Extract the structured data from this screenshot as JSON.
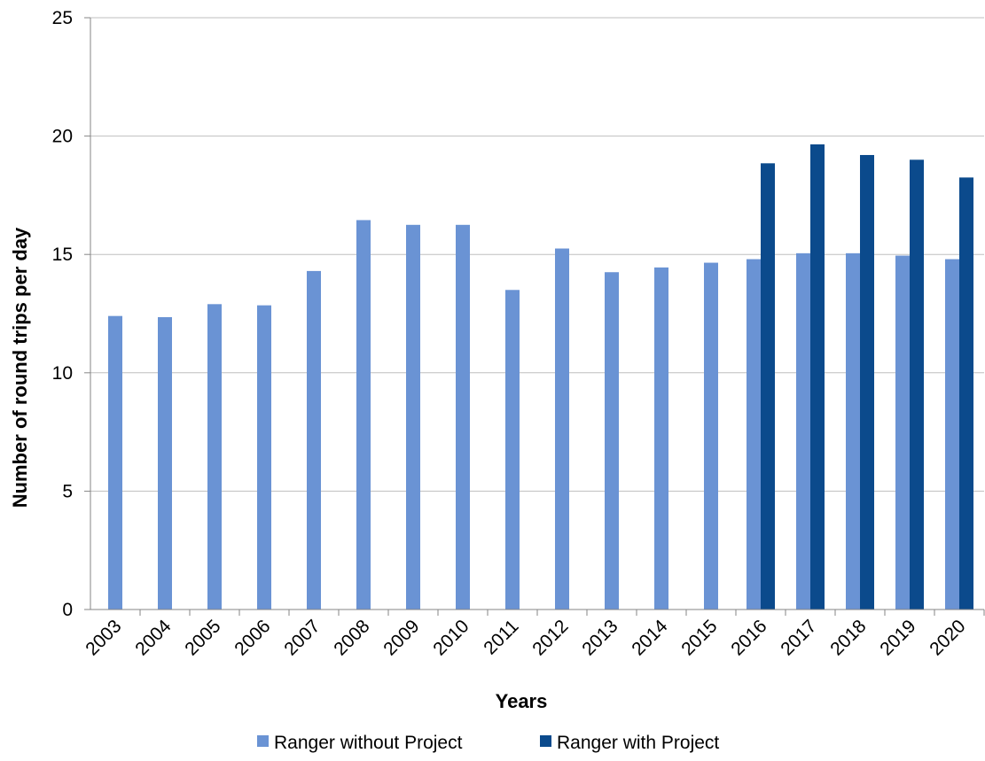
{
  "chart_data": {
    "type": "bar",
    "title": "",
    "xlabel": "Years",
    "ylabel": "Number of round trips per day",
    "ylim": [
      0,
      25
    ],
    "yticks": [
      0,
      5,
      10,
      15,
      20,
      25
    ],
    "grid": true,
    "legend_position": "bottom",
    "categories": [
      "2003",
      "2004",
      "2005",
      "2006",
      "2007",
      "2008",
      "2009",
      "2010",
      "2011",
      "2012",
      "2013",
      "2014",
      "2015",
      "2016",
      "2017",
      "2018",
      "2019",
      "2020"
    ],
    "series": [
      {
        "name": "Ranger without Project",
        "color": "#6a93d4",
        "values": [
          12.4,
          12.35,
          12.9,
          12.85,
          14.3,
          16.45,
          16.25,
          16.25,
          13.5,
          15.25,
          14.25,
          14.45,
          14.65,
          14.8,
          15.05,
          15.05,
          14.95,
          14.8
        ]
      },
      {
        "name": "Ranger with Project",
        "color": "#0b4a8c",
        "values": [
          null,
          null,
          null,
          null,
          null,
          null,
          null,
          null,
          null,
          null,
          null,
          null,
          null,
          18.85,
          19.65,
          19.2,
          19.0,
          18.25
        ]
      }
    ]
  }
}
